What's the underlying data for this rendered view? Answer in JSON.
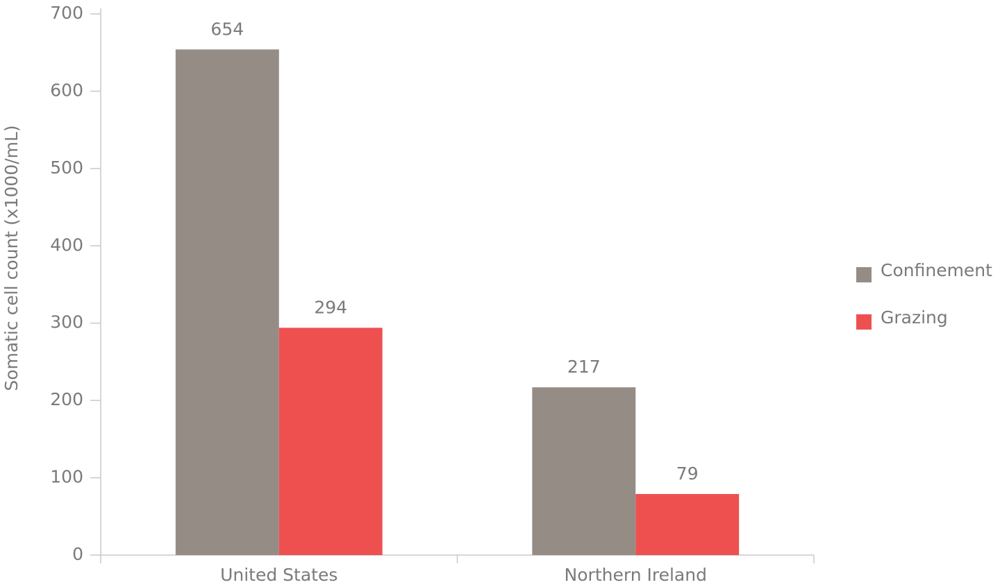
{
  "chart_data": {
    "type": "bar",
    "y_label": "Somatic cell count (x1000/mL)",
    "categories": [
      "United States",
      "Northern Ireland"
    ],
    "series": [
      {
        "name": "Confinement",
        "color": "#968c86",
        "values": [
          654,
          217
        ]
      },
      {
        "name": "Grazing",
        "color": "#ee5050",
        "values": [
          294,
          79
        ]
      }
    ],
    "ylim": [
      0,
      700
    ],
    "yticks": [
      0,
      100,
      200,
      300,
      400,
      500,
      600,
      700
    ],
    "grid": false,
    "legend": "right"
  }
}
